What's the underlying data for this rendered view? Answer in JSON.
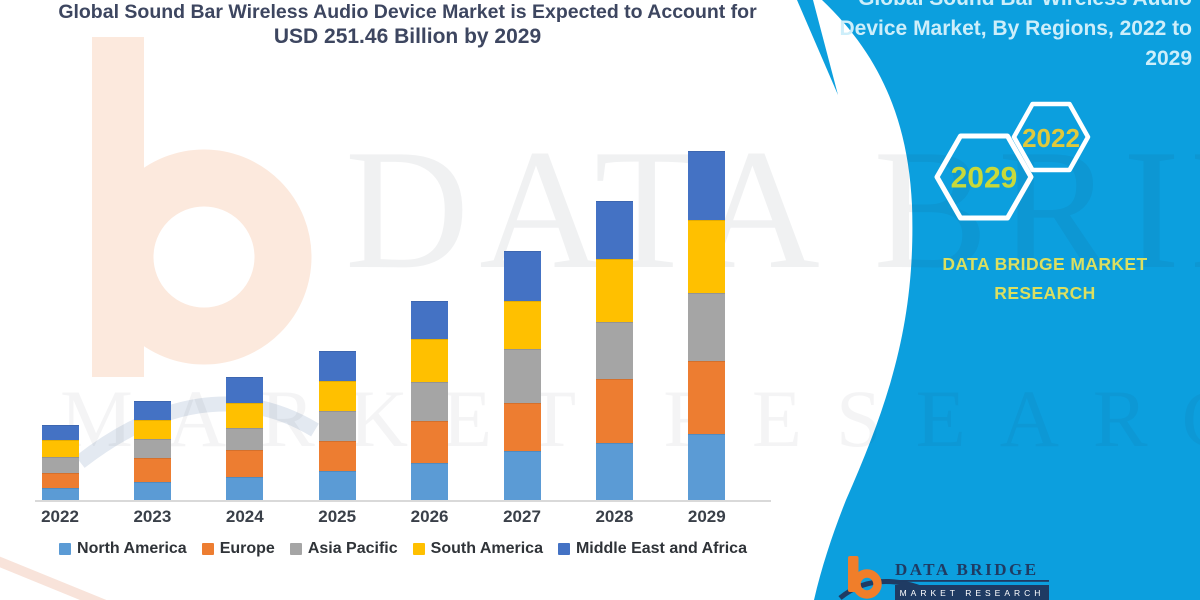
{
  "title": {
    "line1": "Global Sound Bar Wireless Audio Device Market is Expected to Account for",
    "line2": "USD 251.46 Billion by 2029"
  },
  "banner": {
    "heading_lines": [
      "Global Sound Bar Wireless Audio",
      "Device Market, By Regions, 2022 to",
      "2029"
    ],
    "hexagons": [
      {
        "label": "2029",
        "label_color": "#C8D93A"
      },
      {
        "label": "2022",
        "label_color": "#DFC93D"
      }
    ],
    "brand": "DATA BRIDGE MARKET RESEARCH",
    "band_color": "#0C9FDE",
    "heading_color": "#CDEEFA",
    "brand_color": "#DCDF60"
  },
  "watermark": {
    "row1": "DATA BRIDGE",
    "row2": "MARKET RESEARCH"
  },
  "footer_logo": {
    "brand": "DATA BRIDGE",
    "sub": "MARKET RESEARCH",
    "orange": "#F07E2A",
    "navy": "#1F3B63"
  },
  "chart_data": {
    "type": "bar",
    "stacked": true,
    "unit": "USD Billion",
    "categories": [
      "2022",
      "2023",
      "2024",
      "2025",
      "2026",
      "2027",
      "2028",
      "2029"
    ],
    "series": [
      {
        "name": "North America",
        "color": "#5B9BD5",
        "values": [
          9.3,
          13.7,
          17.2,
          21.5,
          27.3,
          35.9,
          41.7,
          48.1
        ]
      },
      {
        "name": "Europe",
        "color": "#ED7D31",
        "values": [
          10.8,
          17.2,
          19.4,
          21.6,
          30.2,
          34.5,
          46.0,
          52.4
        ]
      },
      {
        "name": "Asia Pacific",
        "color": "#A5A5A5",
        "values": [
          11.5,
          13.7,
          15.8,
          21.6,
          28.0,
          38.8,
          41.0,
          48.9
        ]
      },
      {
        "name": "South America",
        "color": "#FFC000",
        "values": [
          12.2,
          13.7,
          18.0,
          21.6,
          30.9,
          34.5,
          45.3,
          52.4
        ]
      },
      {
        "name": "Middle East and Africa",
        "color": "#4472C4",
        "values": [
          10.8,
          13.7,
          18.7,
          21.6,
          27.3,
          35.9,
          41.7,
          49.6
        ]
      }
    ],
    "totals_estimated": [
      54.6,
      72.0,
      89.1,
      107.9,
      143.7,
      179.6,
      215.7,
      251.4
    ],
    "highlight_total_2029": 251.46,
    "ylim": [
      0,
      260
    ],
    "gridlines": false,
    "legend_position": "bottom"
  }
}
